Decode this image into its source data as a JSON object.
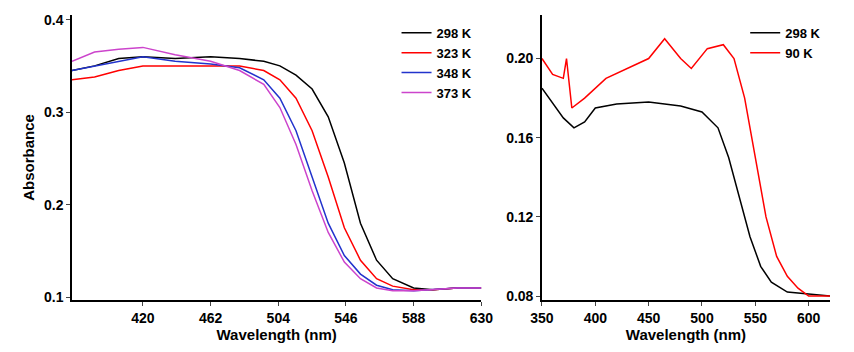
{
  "chart_data": [
    {
      "type": "line",
      "x_label": "Wavelength (nm)",
      "y_label": "Absorbance",
      "xlim": [
        376,
        630
      ],
      "ylim": [
        0.097,
        0.405
      ],
      "xticks": [
        420,
        462,
        504,
        546,
        588,
        630
      ],
      "yticks": [
        0.1,
        0.2,
        0.3,
        0.4
      ],
      "legend": "top right",
      "series": [
        {
          "name": "298 K",
          "color": "#000000",
          "x": [
            376,
            390,
            405,
            420,
            440,
            462,
            480,
            495,
            505,
            515,
            525,
            535,
            545,
            555,
            565,
            575,
            588,
            600,
            615,
            630
          ],
          "values": [
            0.345,
            0.35,
            0.358,
            0.36,
            0.358,
            0.36,
            0.358,
            0.355,
            0.35,
            0.34,
            0.325,
            0.295,
            0.245,
            0.18,
            0.14,
            0.12,
            0.11,
            0.108,
            0.11,
            0.11
          ]
        },
        {
          "name": "323 K",
          "color": "#ff0000",
          "x": [
            376,
            390,
            405,
            420,
            440,
            462,
            480,
            495,
            505,
            515,
            525,
            535,
            545,
            555,
            565,
            575,
            588,
            600,
            615,
            630
          ],
          "values": [
            0.335,
            0.338,
            0.345,
            0.35,
            0.35,
            0.35,
            0.35,
            0.345,
            0.335,
            0.315,
            0.28,
            0.23,
            0.175,
            0.14,
            0.12,
            0.112,
            0.108,
            0.108,
            0.11,
            0.11
          ]
        },
        {
          "name": "348 K",
          "color": "#2233cc",
          "x": [
            376,
            390,
            405,
            420,
            440,
            462,
            480,
            495,
            505,
            515,
            525,
            535,
            545,
            555,
            565,
            575,
            588,
            600,
            615,
            630
          ],
          "values": [
            0.345,
            0.35,
            0.355,
            0.36,
            0.355,
            0.352,
            0.348,
            0.335,
            0.315,
            0.28,
            0.23,
            0.18,
            0.145,
            0.125,
            0.113,
            0.108,
            0.107,
            0.108,
            0.11,
            0.11
          ]
        },
        {
          "name": "373 K",
          "color": "#cc44cc",
          "x": [
            376,
            390,
            405,
            420,
            440,
            462,
            480,
            495,
            505,
            515,
            525,
            535,
            545,
            555,
            565,
            575,
            588,
            600,
            615,
            630
          ],
          "values": [
            0.355,
            0.365,
            0.368,
            0.37,
            0.362,
            0.355,
            0.345,
            0.33,
            0.305,
            0.265,
            0.215,
            0.17,
            0.138,
            0.12,
            0.11,
            0.107,
            0.107,
            0.108,
            0.11,
            0.11
          ]
        }
      ]
    },
    {
      "type": "line",
      "x_label": "Wavelength (nm)",
      "xlim": [
        350,
        620
      ],
      "ylim": [
        0.078,
        0.222
      ],
      "xticks": [
        350,
        400,
        450,
        500,
        550,
        600
      ],
      "yticks": [
        0.08,
        0.12,
        0.16,
        {
          "value": 0.2,
          "label": "0.20"
        }
      ],
      "legend": "top right",
      "series": [
        {
          "name": "298 K",
          "color": "#000000",
          "x": [
            350,
            370,
            380,
            390,
            400,
            420,
            450,
            480,
            500,
            515,
            525,
            535,
            545,
            555,
            565,
            580,
            600,
            620
          ],
          "values": [
            0.185,
            0.17,
            0.165,
            0.168,
            0.175,
            0.177,
            0.178,
            0.176,
            0.173,
            0.165,
            0.15,
            0.13,
            0.11,
            0.095,
            0.087,
            0.082,
            0.081,
            0.08
          ]
        },
        {
          "name": "90 K",
          "color": "#ff0000",
          "x": [
            350,
            360,
            370,
            373,
            378,
            390,
            410,
            430,
            450,
            465,
            480,
            490,
            505,
            520,
            530,
            540,
            550,
            560,
            570,
            580,
            590,
            600,
            620
          ],
          "values": [
            0.2,
            0.192,
            0.19,
            0.2,
            0.175,
            0.18,
            0.19,
            0.195,
            0.2,
            0.21,
            0.2,
            0.195,
            0.205,
            0.207,
            0.2,
            0.18,
            0.15,
            0.12,
            0.1,
            0.09,
            0.084,
            0.08,
            0.08
          ]
        }
      ]
    }
  ]
}
